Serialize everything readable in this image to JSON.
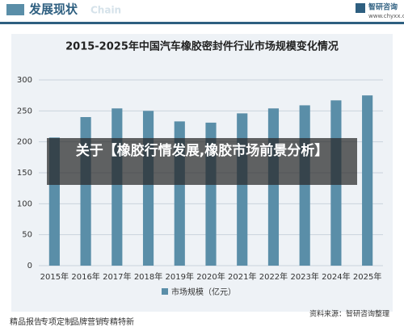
{
  "header": {
    "title": "发展现状",
    "watermark": "Chain",
    "brand": "智研咨询",
    "url": "www.chyxx.com"
  },
  "chart_data": {
    "type": "bar",
    "title": "2015-2025年中国汽车橡胶密封件行业市场规模变化情况",
    "categories": [
      "2015年",
      "2016年",
      "2017年",
      "2018年",
      "2019年",
      "2020年",
      "2021年",
      "2022年",
      "2023年",
      "2024年",
      "2025年"
    ],
    "series": [
      {
        "name": "市场规模（亿元）",
        "color": "#5a8ea8",
        "values": [
          207,
          240,
          254,
          250,
          233,
          231,
          246,
          254,
          259,
          267,
          275
        ]
      }
    ],
    "ylim": [
      0,
      300
    ],
    "yticks": [
      0,
      50,
      100,
      150,
      200,
      250,
      300
    ],
    "grid": true,
    "legend": "bottom"
  },
  "overlay": {
    "text": "关于【橡胶行情发展,橡胶市场前景分析】"
  },
  "footer": {
    "items": [
      "精品报告",
      "专项定制",
      "品牌营销",
      "专精特新"
    ],
    "source": "资料来源：智研咨询整理"
  }
}
